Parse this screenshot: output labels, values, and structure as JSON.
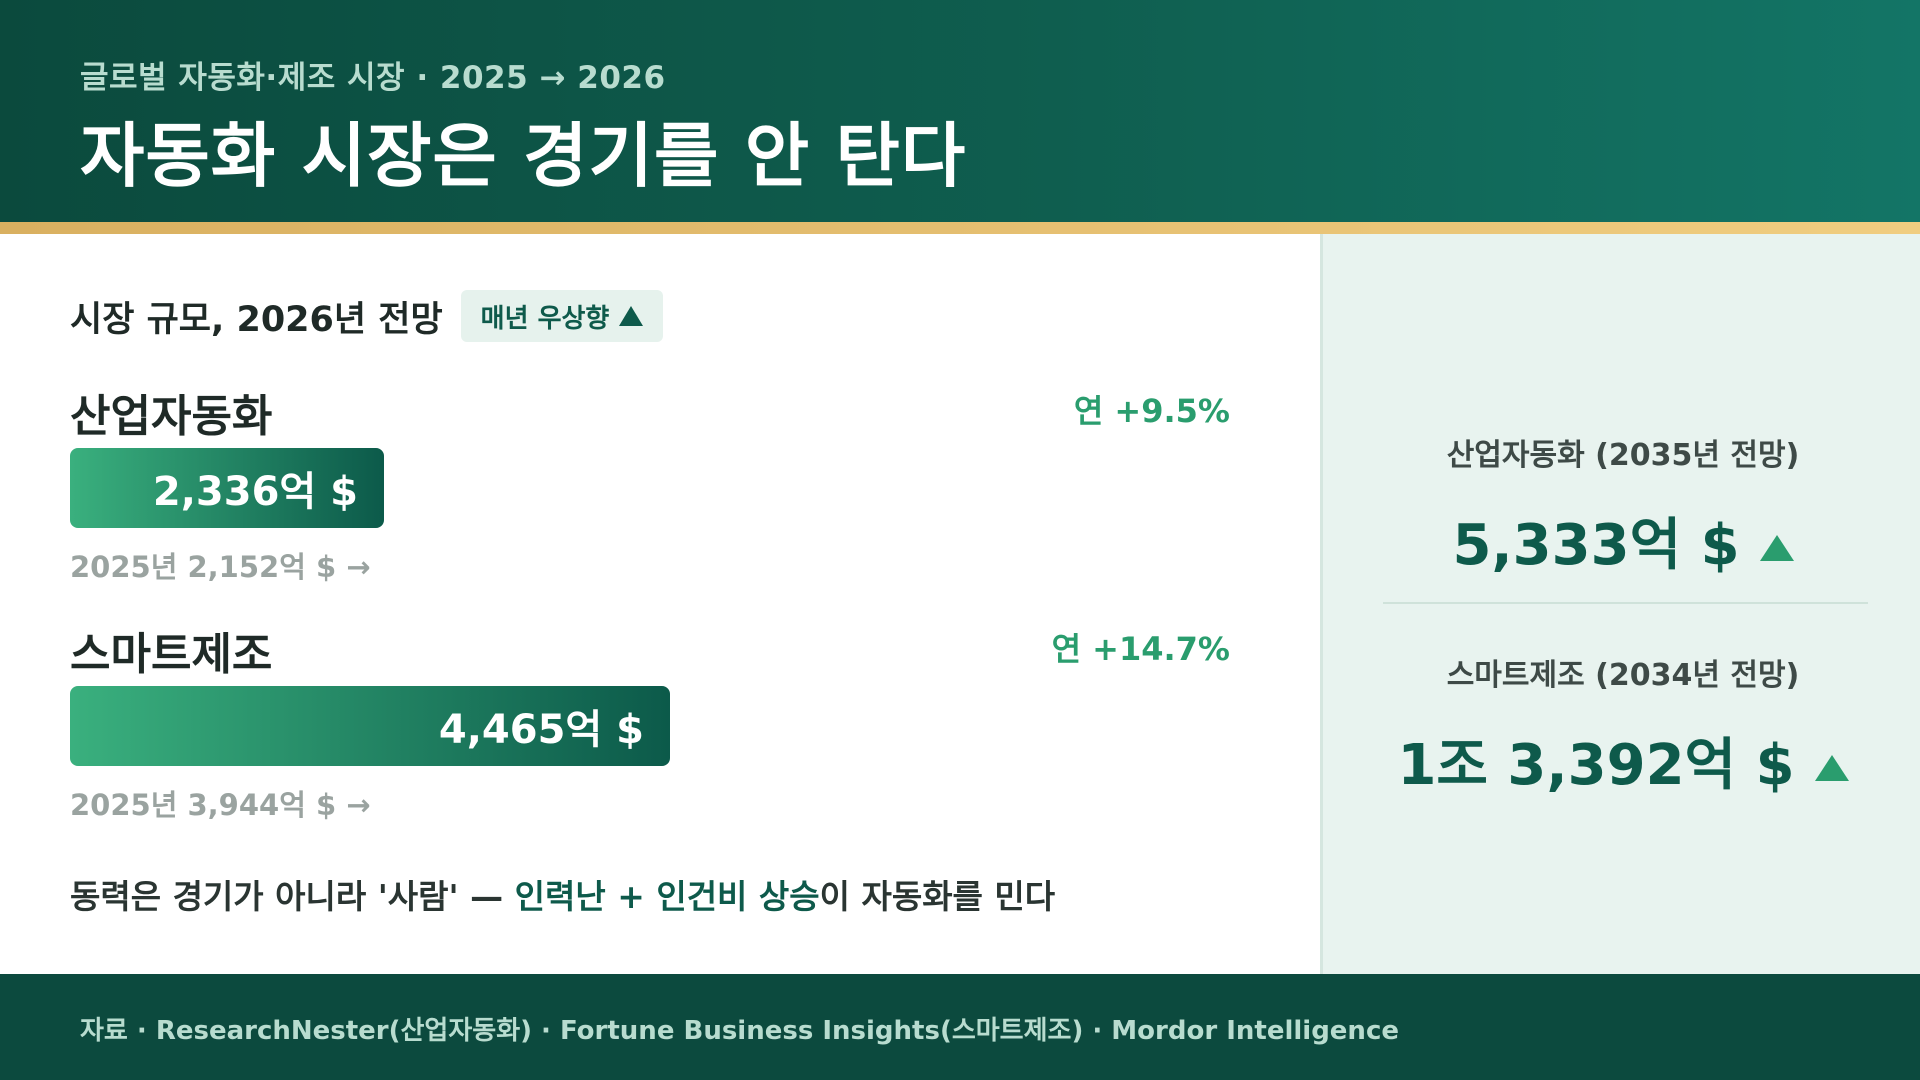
{
  "header": {
    "kicker": "글로벌 자동화·제조 시장 · 2025 → 2026",
    "title": "자동화 시장은 경기를 안 탄다"
  },
  "section": {
    "title": "시장 규모, 2026년 전망",
    "trend_label": "매년 우상향"
  },
  "markets": [
    {
      "name": "산업자동화",
      "growth": "연 +9.5%",
      "value_label": "2,336억 $",
      "value": 2336,
      "prev_label": "2025년 2,152억 $ →",
      "prev_value": 2152
    },
    {
      "name": "스마트제조",
      "growth": "연 +14.7%",
      "value_label": "4,465억 $",
      "value": 4465,
      "prev_label": "2025년 3,944억 $ →",
      "prev_value": 3944
    }
  ],
  "footnote": {
    "prefix": "동력은 경기가 아니라 '사람' — ",
    "highlight": "인력난 + 인건비 상승",
    "suffix": "이 자동화를 민다"
  },
  "forecasts": [
    {
      "label": "산업자동화 (2035년 전망)",
      "value": "5,333억 $"
    },
    {
      "label": "스마트제조 (2034년 전망)",
      "value": "1조 3,392억 $"
    }
  ],
  "footer": {
    "source": "자료 · ResearchNester(산업자동화) · Fortune Business Insights(스마트제조) · Mordor Intelligence"
  },
  "colors": {
    "brand_dark": "#0c4a3e",
    "brand_green": "#0e5a4b",
    "accent_green": "#2a9d6e",
    "gold": "#f0cd80",
    "panel_bg": "#e8f3ef"
  },
  "icons": {
    "trend": "triangle-up-icon",
    "kpi": "triangle-up-icon"
  }
}
